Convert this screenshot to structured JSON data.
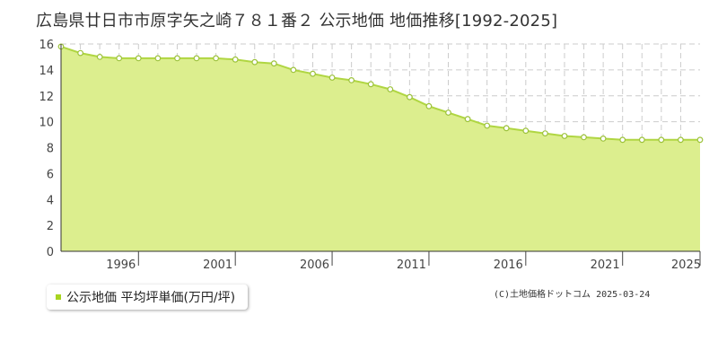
{
  "title": "広島県廿日市市原字矢之崎７８１番２ 公示地価 地価推移[1992-2025]",
  "legend_label": "公示地価 平均坪単価(万円/坪)",
  "copyright": "(C)土地価格ドットコム 2025-03-24",
  "colors": {
    "fill": "#dcee8e",
    "line": "#b0d642",
    "marker": "#9cc23a",
    "grid": "#cccccc",
    "legend": "#a8d520"
  },
  "chart_data": {
    "type": "area",
    "title": "",
    "xlabel": "",
    "ylabel": "",
    "xlim": [
      1992,
      2025
    ],
    "ylim": [
      0,
      16
    ],
    "yticks": [
      0,
      2,
      4,
      6,
      8,
      10,
      12,
      14,
      16
    ],
    "xticks": [
      1996,
      2001,
      2006,
      2011,
      2016,
      2021,
      2025
    ],
    "grid": true,
    "legend": "bottom-left",
    "series": [
      {
        "name": "公示地価 平均坪単価(万円/坪)",
        "x": [
          1992,
          1993,
          1994,
          1995,
          1996,
          1997,
          1998,
          1999,
          2000,
          2001,
          2002,
          2003,
          2004,
          2005,
          2006,
          2007,
          2008,
          2009,
          2010,
          2011,
          2012,
          2013,
          2014,
          2015,
          2016,
          2017,
          2018,
          2019,
          2020,
          2021,
          2022,
          2023,
          2024,
          2025
        ],
        "values": [
          15.8,
          15.3,
          15.0,
          14.9,
          14.9,
          14.9,
          14.9,
          14.9,
          14.9,
          14.8,
          14.6,
          14.5,
          14.0,
          13.7,
          13.4,
          13.2,
          12.9,
          12.5,
          11.9,
          11.2,
          10.7,
          10.2,
          9.7,
          9.5,
          9.3,
          9.1,
          8.9,
          8.8,
          8.7,
          8.6,
          8.6,
          8.6,
          8.6,
          8.6
        ]
      }
    ]
  }
}
